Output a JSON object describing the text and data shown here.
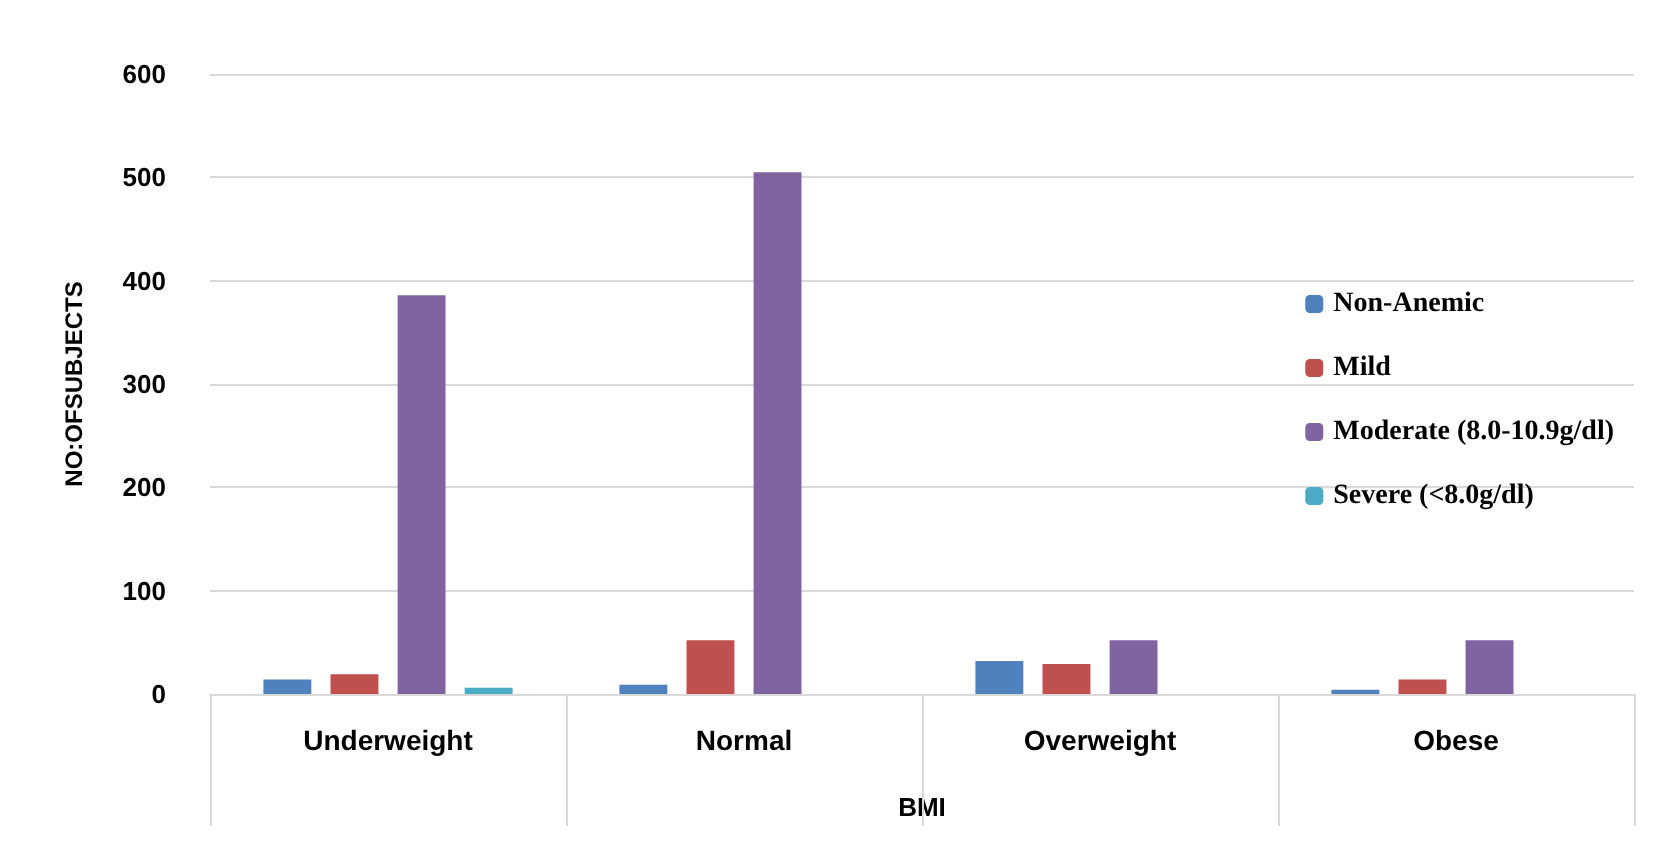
{
  "chart_data": {
    "type": "bar",
    "xlabel": "BMI",
    "ylabel": "NO:OFSUBJECTS",
    "categories": [
      "Underweight",
      "Normal",
      "Overweight",
      "Obese"
    ],
    "series": [
      {
        "name": "Non-Anemic",
        "color": "#4f81bd",
        "values": [
          14,
          9,
          32,
          4
        ]
      },
      {
        "name": "Mild",
        "color": "#c0504d",
        "values": [
          19,
          52,
          29,
          14
        ]
      },
      {
        "name": "Moderate (8.0-10.9g/dl)",
        "color": "#8064a2",
        "values": [
          386,
          505,
          52,
          52
        ]
      },
      {
        "name": "Severe (<8.0g/dl)",
        "color": "#4bacc6",
        "values": [
          6,
          0,
          0,
          0
        ]
      }
    ],
    "ylim": [
      0,
      600
    ],
    "yticks": [
      0,
      100,
      200,
      300,
      400,
      500,
      600
    ],
    "grid": "y",
    "legend": "right"
  }
}
